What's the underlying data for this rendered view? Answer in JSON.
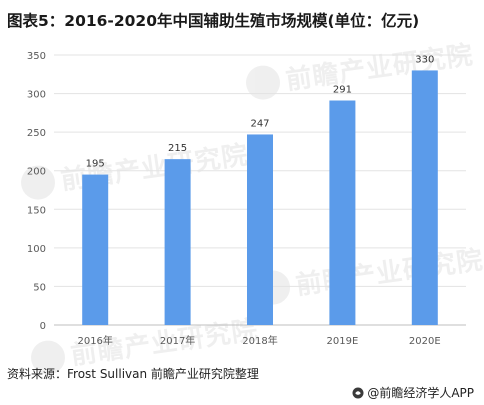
{
  "title": "图表5：2016-2020年中国辅助生殖市场规模(单位：亿元)",
  "source": "资料来源：Frost Sullivan 前瞻产业研究院整理",
  "brand": "@前瞻经济学人APP",
  "watermark": "前瞻产业研究院",
  "colors": {
    "bar": "#5b9bea",
    "grid": "#e3e3e3",
    "axis": "#bfbfbf",
    "tick_text": "#595959"
  },
  "chart_data": {
    "type": "bar",
    "categories": [
      "2016年",
      "2017年",
      "2018年",
      "2019E",
      "2020E"
    ],
    "values": [
      195,
      215,
      247,
      291,
      330
    ],
    "data_labels": [
      "195",
      "215",
      "247",
      "291",
      "330"
    ],
    "yticks": [
      "0",
      "50",
      "100",
      "150",
      "200",
      "250",
      "300",
      "350"
    ],
    "ylim": [
      0,
      350
    ],
    "grid": true,
    "xlabel": "",
    "ylabel": ""
  }
}
